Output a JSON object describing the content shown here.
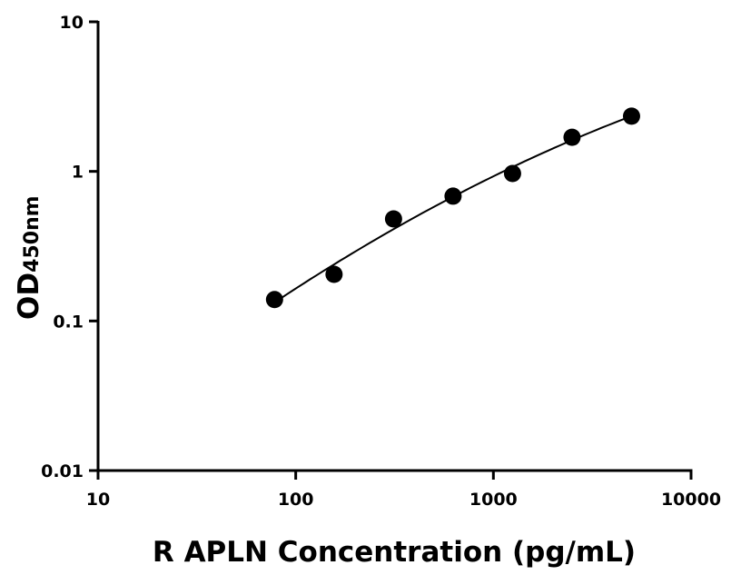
{
  "chart_data": {
    "type": "scatter",
    "xlabel": "R APLN Concentration (pg/mL)",
    "ylabel": "OD",
    "ylabel_subscript": "450nm",
    "x_scale": "log",
    "y_scale": "log",
    "xlim": [
      10,
      10000
    ],
    "ylim": [
      0.01,
      10
    ],
    "x_ticks": [
      "10",
      "100",
      "1000",
      "10000"
    ],
    "y_ticks": [
      "0.01",
      "0.1",
      "1",
      "10"
    ],
    "grid": false,
    "fit_line": true,
    "points": {
      "x": [
        78.125,
        156.25,
        312.5,
        625,
        1250,
        2500,
        5000
      ],
      "y": [
        0.139,
        0.205,
        0.481,
        0.683,
        0.968,
        1.69,
        2.34
      ]
    },
    "colors": {
      "points": "#000000",
      "axes": "#000000"
    }
  }
}
